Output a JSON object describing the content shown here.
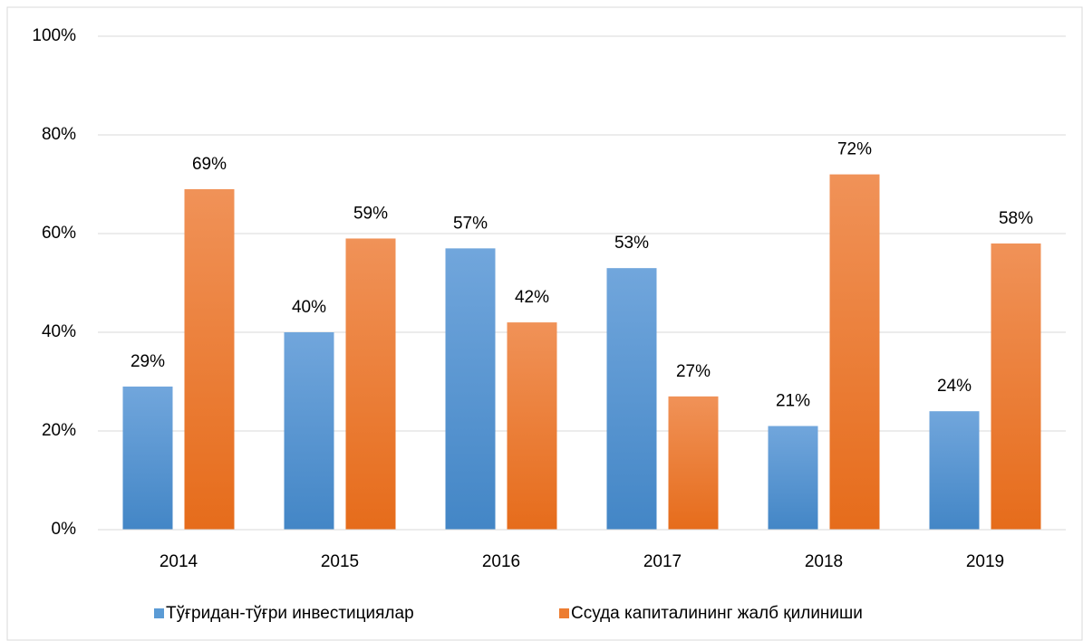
{
  "chart_data": {
    "type": "bar",
    "categories": [
      "2014",
      "2015",
      "2016",
      "2017",
      "2018",
      "2019"
    ],
    "series": [
      {
        "name": "Тўғридан-тўғри инвестициялар",
        "color": "#5b9bd5",
        "values": [
          29,
          40,
          57,
          53,
          21,
          24
        ],
        "value_labels": [
          "29%",
          "40%",
          "57%",
          "53%",
          "21%",
          "24%"
        ]
      },
      {
        "name": "Ссуда капиталининг жалб қилиниши",
        "color": "#ed7d31",
        "values": [
          69,
          59,
          42,
          27,
          72,
          58
        ],
        "value_labels": [
          "69%",
          "59%",
          "42%",
          "27%",
          "72%",
          "58%"
        ]
      }
    ],
    "ylim": [
      0,
      100
    ],
    "yticks": [
      {
        "value": 0,
        "label": "0%"
      },
      {
        "value": 20,
        "label": "20%"
      },
      {
        "value": 40,
        "label": "40%"
      },
      {
        "value": 60,
        "label": "60%"
      },
      {
        "value": 80,
        "label": "80%"
      },
      {
        "value": 100,
        "label": "100%"
      }
    ],
    "grid": true,
    "legend": "bottom"
  }
}
